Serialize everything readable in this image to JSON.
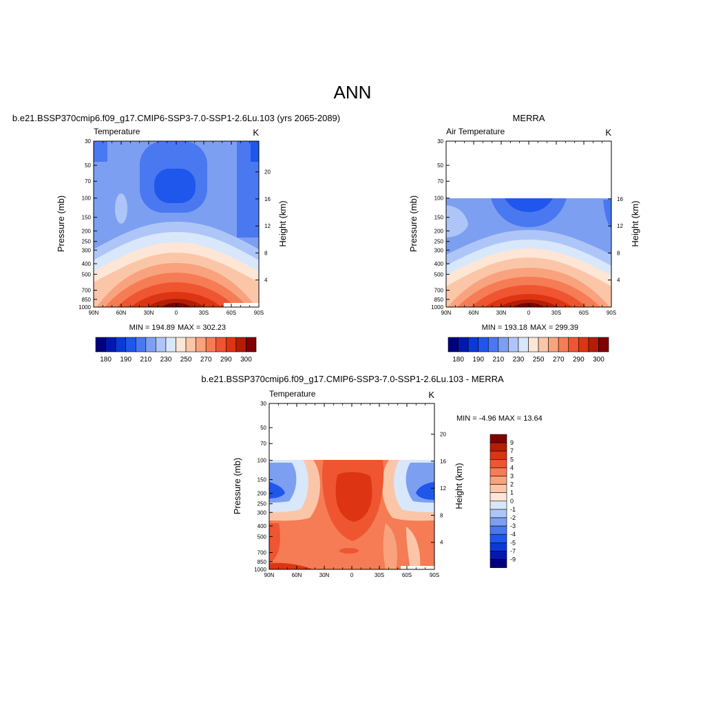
{
  "page_title": "ANN",
  "chart_data": [
    {
      "type": "heatmap",
      "title": "b.e21.BSSP370cmip6.f09_g17.CMIP6-SSP3-7.0-SSP1-2.6Lu.103 (yrs 2065-2089)",
      "left_label": "Temperature",
      "units": "K",
      "ylabel": "Pressure (mb)",
      "ylabel_right": "Height (km)",
      "x_ticks": [
        "90N",
        "60N",
        "30N",
        "0",
        "30S",
        "60S",
        "90S"
      ],
      "y_ticks": [
        "30",
        "50",
        "70",
        "100",
        "150",
        "200",
        "250",
        "300",
        "400",
        "500",
        "700",
        "850",
        "1000"
      ],
      "y_ticks_right": [
        "20",
        "16",
        "12",
        "8",
        "4"
      ],
      "ylim": [
        1000,
        30
      ],
      "x_range": [
        90,
        -90
      ],
      "min_label": "MIN = 194.89",
      "max_label": "MAX = 302.23",
      "colorbar_labels": [
        "180",
        "190",
        "210",
        "230",
        "250",
        "270",
        "290",
        "300"
      ]
    },
    {
      "type": "heatmap",
      "title": "MERRA",
      "left_label": "Air Temperature",
      "units": "K",
      "ylabel": "Pressure (mb)",
      "ylabel_right": "Height (km)",
      "x_ticks": [
        "90N",
        "60N",
        "30N",
        "0",
        "30S",
        "60S",
        "90S"
      ],
      "y_ticks": [
        "30",
        "50",
        "70",
        "100",
        "150",
        "200",
        "250",
        "300",
        "400",
        "500",
        "700",
        "850",
        "1000"
      ],
      "y_ticks_right": [
        "16",
        "12",
        "8",
        "4"
      ],
      "ylim": [
        1000,
        30
      ],
      "data_top_pressure": 100,
      "min_label": "MIN = 193.18",
      "max_label": "MAX = 299.39",
      "colorbar_labels": [
        "180",
        "190",
        "210",
        "230",
        "250",
        "270",
        "290",
        "300"
      ]
    },
    {
      "type": "heatmap",
      "title": "b.e21.BSSP370cmip6.f09_g17.CMIP6-SSP3-7.0-SSP1-2.6Lu.103 - MERRA",
      "left_label": "Temperature",
      "units": "K",
      "ylabel": "Pressure (mb)",
      "ylabel_right": "Height (km)",
      "x_ticks": [
        "90N",
        "60N",
        "30N",
        "0",
        "30S",
        "60S",
        "90S"
      ],
      "y_ticks": [
        "30",
        "50",
        "70",
        "100",
        "150",
        "200",
        "250",
        "300",
        "400",
        "500",
        "700",
        "850",
        "1000"
      ],
      "y_ticks_right": [
        "20",
        "16",
        "12",
        "8",
        "4"
      ],
      "ylim": [
        1000,
        30
      ],
      "data_top_pressure": 100,
      "minmax_label": "MIN =  -4.96  MAX =  13.64",
      "colorbar_labels": [
        "9",
        "7",
        "5",
        "4",
        "3",
        "2",
        "1",
        "0",
        "-1",
        "-2",
        "-3",
        "-4",
        "-5",
        "-7",
        "-9"
      ]
    }
  ],
  "colors": {
    "temp_scale": [
      "#00007f",
      "#0018b0",
      "#0a3ad6",
      "#1f57ec",
      "#4a78f0",
      "#7d9ff2",
      "#aec6f7",
      "#d9e7fb",
      "#fde6d6",
      "#fbc6a8",
      "#f9a27e",
      "#f57c55",
      "#ee5530",
      "#dd3513",
      "#b41d06",
      "#7f0000"
    ],
    "diff_scale": [
      "#7f0000",
      "#b41d06",
      "#dd3513",
      "#ee5530",
      "#f57c55",
      "#f9a27e",
      "#fbc6a8",
      "#fde6d6",
      "#d9e7fb",
      "#aec6f7",
      "#7d9ff2",
      "#4a78f0",
      "#1f57ec",
      "#0a3ad6",
      "#0018b0",
      "#00007f"
    ]
  }
}
